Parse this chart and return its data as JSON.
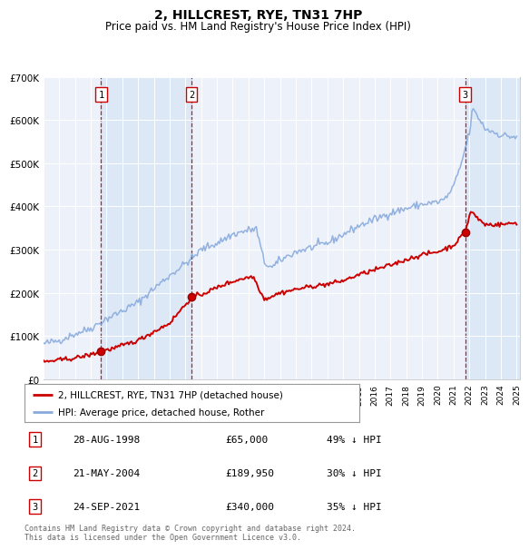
{
  "title": "2, HILLCREST, RYE, TN31 7HP",
  "subtitle": "Price paid vs. HM Land Registry's House Price Index (HPI)",
  "title_fontsize": 10,
  "subtitle_fontsize": 8.5,
  "x_start_year": 1995,
  "x_end_year": 2025,
  "ylim": [
    0,
    700000
  ],
  "yticks": [
    0,
    100000,
    200000,
    300000,
    400000,
    500000,
    600000,
    700000
  ],
  "ytick_labels": [
    "£0",
    "£100K",
    "£200K",
    "£300K",
    "£400K",
    "£500K",
    "£600K",
    "£700K"
  ],
  "sale_dates": [
    1998.66,
    2004.39,
    2021.73
  ],
  "sale_prices": [
    65000,
    189950,
    340000
  ],
  "sale_labels": [
    "1",
    "2",
    "3"
  ],
  "vline_color": "#cc0000",
  "shade_color": "#ddeeff",
  "house_line_color": "#cc0000",
  "hpi_line_color": "#88aadd",
  "legend_entries": [
    "2, HILLCREST, RYE, TN31 7HP (detached house)",
    "HPI: Average price, detached house, Rother"
  ],
  "table_rows": [
    [
      "1",
      "28-AUG-1998",
      "£65,000",
      "49% ↓ HPI"
    ],
    [
      "2",
      "21-MAY-2004",
      "£189,950",
      "30% ↓ HPI"
    ],
    [
      "3",
      "24-SEP-2021",
      "£340,000",
      "35% ↓ HPI"
    ]
  ],
  "footer_text": "Contains HM Land Registry data © Crown copyright and database right 2024.\nThis data is licensed under the Open Government Licence v3.0.",
  "background_color": "#ffffff"
}
